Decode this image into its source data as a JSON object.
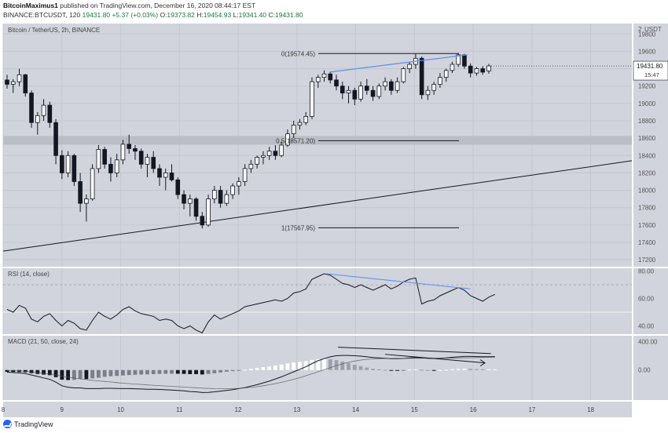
{
  "header": {
    "author": "BitcoinMaximus1",
    "published_text": "published on TradingView.com, December 16, 2020 08:44:17 EST",
    "symbol": "BINANCE:BTCUSDT, 120",
    "last": "19431.80",
    "change": "+5.37 (+0.03%)",
    "o_label": "O:",
    "o": "19373.82",
    "h_label": "H:",
    "h": "19454.93",
    "l_label": "L:",
    "l": "19341.40",
    "c_label": "C:",
    "c": "19431.80"
  },
  "footer": {
    "brand": "TradingView"
  },
  "colors": {
    "panel_bg": "#d1d4dc",
    "grid": "#c4c7cf",
    "candle_up": "#ffffff",
    "candle_down": "#131722",
    "rsi_line": "#131722",
    "trend_blue": "#5b8ff9",
    "zone": "#b8bbc3"
  },
  "chart_data": {
    "type": "candlestick",
    "title": "Bitcoin / TetherUS, 2h, BINANCE",
    "price_axis": {
      "unit_label": "USDT",
      "top_label": "2",
      "ticks": [
        19800,
        19600,
        19400,
        19200,
        19000,
        18800,
        18600,
        18400,
        18200,
        18000,
        17800,
        17600,
        17400,
        17200
      ],
      "range": [
        17120,
        19920
      ],
      "last_price": "19431.80",
      "countdown": "15:47"
    },
    "x_axis": {
      "ticks": [
        "8",
        "9",
        "10",
        "11",
        "12",
        "13",
        "14",
        "15",
        "16",
        "17",
        "18"
      ],
      "range": [
        8,
        18.7
      ]
    },
    "fib_levels": [
      {
        "label": "0(19574.45)",
        "value": 19574.45
      },
      {
        "label": "0.5(18571.20)",
        "value": 18571.2
      },
      {
        "label": "1(17567.95)",
        "value": 17567.95
      }
    ],
    "support_zone": [
      18525,
      18625
    ],
    "support_line": {
      "from": [
        8,
        17300
      ],
      "to": [
        18.7,
        18340
      ]
    },
    "price_divergence_line": {
      "from": [
        13.55,
        19360
      ],
      "to": [
        15.9,
        19560
      ]
    },
    "candles_ohlc": [
      [
        19270,
        19330,
        19170,
        19220
      ],
      [
        19220,
        19280,
        19120,
        19250
      ],
      [
        19250,
        19400,
        19200,
        19330
      ],
      [
        19330,
        19340,
        19080,
        19120
      ],
      [
        19120,
        19150,
        18720,
        18780
      ],
      [
        18780,
        18900,
        18640,
        18860
      ],
      [
        18860,
        19050,
        18800,
        18980
      ],
      [
        18980,
        19020,
        18720,
        18780
      ],
      [
        18780,
        18820,
        18300,
        18400
      ],
      [
        18400,
        18460,
        18130,
        18200
      ],
      [
        18200,
        18450,
        18150,
        18400
      ],
      [
        18400,
        18420,
        18050,
        18100
      ],
      [
        18100,
        18200,
        17750,
        17850
      ],
      [
        17850,
        17950,
        17640,
        17900
      ],
      [
        17900,
        18300,
        17880,
        18250
      ],
      [
        18250,
        18520,
        18200,
        18470
      ],
      [
        18470,
        18500,
        18250,
        18300
      ],
      [
        18300,
        18380,
        18100,
        18200
      ],
      [
        18200,
        18420,
        18150,
        18350
      ],
      [
        18350,
        18580,
        18300,
        18530
      ],
      [
        18530,
        18640,
        18420,
        18480
      ],
      [
        18480,
        18520,
        18350,
        18450
      ],
      [
        18450,
        18480,
        18250,
        18300
      ],
      [
        18300,
        18420,
        18150,
        18380
      ],
      [
        18380,
        18450,
        18200,
        18250
      ],
      [
        18250,
        18300,
        18050,
        18150
      ],
      [
        18150,
        18250,
        18000,
        18200
      ],
      [
        18200,
        18300,
        18100,
        18120
      ],
      [
        18120,
        18150,
        17900,
        17950
      ],
      [
        17950,
        18000,
        17780,
        17850
      ],
      [
        17850,
        17950,
        17700,
        17900
      ],
      [
        17900,
        17920,
        17650,
        17700
      ],
      [
        17700,
        17750,
        17560,
        17600
      ],
      [
        17600,
        17950,
        17580,
        17900
      ],
      [
        17900,
        18050,
        17850,
        18000
      ],
      [
        18000,
        18050,
        17800,
        17850
      ],
      [
        17850,
        18000,
        17820,
        17950
      ],
      [
        17950,
        18080,
        17900,
        18050
      ],
      [
        18050,
        18150,
        17950,
        18100
      ],
      [
        18100,
        18300,
        18050,
        18250
      ],
      [
        18250,
        18350,
        18200,
        18300
      ],
      [
        18300,
        18400,
        18250,
        18380
      ],
      [
        18380,
        18450,
        18300,
        18400
      ],
      [
        18400,
        18500,
        18350,
        18450
      ],
      [
        18450,
        18520,
        18350,
        18400
      ],
      [
        18400,
        18560,
        18380,
        18520
      ],
      [
        18520,
        18700,
        18500,
        18650
      ],
      [
        18650,
        18800,
        18600,
        18750
      ],
      [
        18750,
        18820,
        18700,
        18780
      ],
      [
        18780,
        18900,
        18750,
        18850
      ],
      [
        18850,
        19300,
        18820,
        19250
      ],
      [
        19250,
        19330,
        19180,
        19300
      ],
      [
        19300,
        19380,
        19250,
        19340
      ],
      [
        19340,
        19360,
        19230,
        19270
      ],
      [
        19270,
        19330,
        19150,
        19200
      ],
      [
        19200,
        19250,
        19050,
        19120
      ],
      [
        19120,
        19200,
        19000,
        19150
      ],
      [
        19150,
        19180,
        18980,
        19050
      ],
      [
        19050,
        19250,
        19020,
        19200
      ],
      [
        19200,
        19280,
        19100,
        19150
      ],
      [
        19150,
        19200,
        19030,
        19080
      ],
      [
        19080,
        19230,
        19050,
        19200
      ],
      [
        19200,
        19300,
        19150,
        19250
      ],
      [
        19250,
        19280,
        19100,
        19150
      ],
      [
        19150,
        19300,
        19120,
        19250
      ],
      [
        19250,
        19420,
        19230,
        19400
      ],
      [
        19400,
        19480,
        19350,
        19450
      ],
      [
        19450,
        19570,
        19400,
        19520
      ],
      [
        19520,
        19540,
        19050,
        19100
      ],
      [
        19100,
        19200,
        19040,
        19150
      ],
      [
        19150,
        19250,
        19100,
        19220
      ],
      [
        19220,
        19350,
        19180,
        19300
      ],
      [
        19300,
        19400,
        19250,
        19380
      ],
      [
        19380,
        19480,
        19350,
        19450
      ],
      [
        19450,
        19580,
        19420,
        19560
      ],
      [
        19560,
        19570,
        19400,
        19430
      ],
      [
        19430,
        19460,
        19300,
        19350
      ],
      [
        19350,
        19420,
        19320,
        19400
      ],
      [
        19400,
        19430,
        19330,
        19360
      ],
      [
        19373.82,
        19454.93,
        19341.4,
        19431.8
      ]
    ],
    "rsi": {
      "label": "RSI (14, close)",
      "ticks": [
        80,
        60,
        40
      ],
      "range": [
        34,
        82
      ],
      "values": [
        52,
        50,
        55,
        53,
        45,
        43,
        47,
        49,
        44,
        40,
        44,
        42,
        38,
        37,
        44,
        50,
        47,
        45,
        48,
        52,
        54,
        51,
        49,
        48,
        47,
        44,
        45,
        44,
        40,
        38,
        40,
        37,
        35,
        43,
        48,
        45,
        47,
        49,
        51,
        54,
        55,
        56,
        57,
        58,
        59,
        58,
        60,
        64,
        65,
        67,
        74,
        76,
        78,
        77,
        74,
        71,
        70,
        68,
        70,
        68,
        66,
        68,
        70,
        67,
        69,
        72,
        74,
        75,
        56,
        58,
        59,
        62,
        64,
        66,
        68,
        66,
        62,
        60,
        58,
        61,
        63
      ]
    },
    "macd": {
      "label": "MACD (21, 50, close, 24)",
      "ticks": [
        "400.00",
        "0.00"
      ],
      "range": [
        -420,
        480
      ],
      "macd_line": [
        -30,
        -35,
        -40,
        -50,
        -70,
        -90,
        -110,
        -130,
        -170,
        -220,
        -240,
        -250,
        -250,
        -260,
        -260,
        -260,
        -255,
        -255,
        -258,
        -260,
        -260,
        -262,
        -265,
        -268,
        -270,
        -272,
        -276,
        -280,
        -285,
        -292,
        -300,
        -305,
        -315,
        -312,
        -305,
        -295,
        -285,
        -275,
        -260,
        -245,
        -225,
        -205,
        -180,
        -155,
        -125,
        -95,
        -60,
        -25,
        10,
        45,
        90,
        130,
        160,
        185,
        200,
        205,
        205,
        200,
        195,
        185,
        175,
        170,
        165,
        160,
        160,
        162,
        170,
        175,
        170,
        165,
        162,
        165,
        170,
        178,
        185,
        190,
        190,
        188,
        186,
        187,
        188
      ],
      "signal_line": [
        -5,
        -8,
        -12,
        -18,
        -26,
        -35,
        -46,
        -58,
        -70,
        -85,
        -100,
        -112,
        -124,
        -134,
        -144,
        -152,
        -160,
        -168,
        -176,
        -184,
        -190,
        -196,
        -202,
        -208,
        -213,
        -218,
        -223,
        -228,
        -233,
        -238,
        -243,
        -248,
        -253,
        -257,
        -260,
        -261,
        -262,
        -260,
        -256,
        -250,
        -242,
        -232,
        -220,
        -206,
        -190,
        -172,
        -152,
        -130,
        -106,
        -80,
        -52,
        -24,
        6,
        34,
        62,
        86,
        108,
        126,
        140,
        150,
        156,
        160,
        162,
        163,
        163,
        163,
        164,
        165,
        165,
        165,
        165,
        165,
        166,
        167,
        169,
        171,
        173,
        175,
        176,
        177,
        178
      ],
      "divergence_line_1": {
        "from": [
          13.7,
          320
        ],
        "to": [
          16.3,
          230
        ]
      },
      "divergence_line_2": {
        "from": [
          14.5,
          220
        ],
        "to": [
          16.2,
          100
        ]
      }
    }
  }
}
